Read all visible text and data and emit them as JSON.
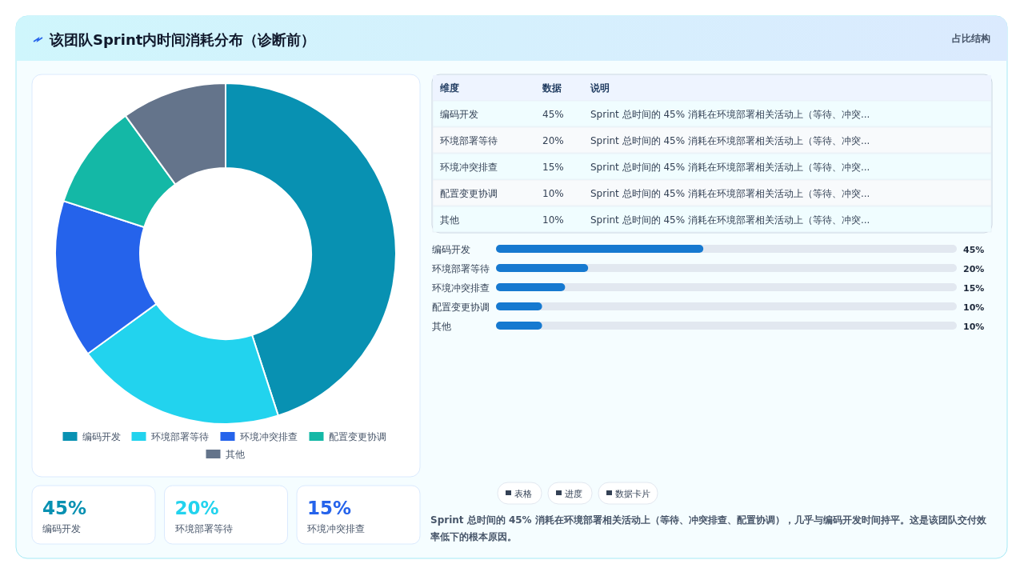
{
  "chart_data": [
    {
      "type": "donut",
      "title": "该团队Sprint内时间消耗分布（诊断前）",
      "annotations": [
        "占比结构"
      ],
      "categories": [
        "编码开发",
        "环境部署等待",
        "环境冲突排查",
        "配置变更协调",
        "其他"
      ],
      "values": [
        45,
        20,
        15,
        10,
        10
      ],
      "colors": [
        "#0891b2",
        "#22d3ee",
        "#2563eb",
        "#14b8a6",
        "#64748b"
      ],
      "legend": "bottom"
    },
    {
      "type": "other",
      "categories": [
        "编码开发",
        "环境部署等待",
        "环境冲突排查",
        "配置变更协调",
        "其他"
      ],
      "values": [
        45,
        20,
        15,
        10,
        10
      ],
      "value_labels": [
        "45%",
        "20%",
        "15%",
        "10%",
        "10%"
      ],
      "annotations": [
        "维度",
        "数据",
        "说明",
        "Sprint 总时间的 45% 消耗在环境部署相关活动上（等待、冲突..."
      ]
    },
    {
      "type": "bar",
      "orientation": "horizontal",
      "categories": [
        "编码开发",
        "环境部署等待",
        "环境冲突排查",
        "配置变更协调",
        "其他"
      ],
      "values": [
        45,
        20,
        15,
        10,
        10
      ],
      "value_labels": [
        "45%",
        "20%",
        "15%",
        "10%",
        "10%"
      ],
      "color": "#1679d0",
      "xlim": [
        0,
        100
      ],
      "tick_labels": false,
      "annotations": [
        "表格",
        "进度",
        "数据卡片",
        "Sprint 总时间的 45% 消耗在环境部署相关活动上（等待、冲突排查、配置协调），几乎与编码开发时间持平。这是该团队交付效率低下的根本原因。"
      ]
    },
    {
      "type": "other",
      "categories": [
        "编码开发",
        "环境部署等待",
        "环境冲突排查"
      ],
      "values": [
        45,
        20,
        15
      ],
      "value_labels": [
        "45%",
        "20%",
        "15%"
      ]
    }
  ]
}
